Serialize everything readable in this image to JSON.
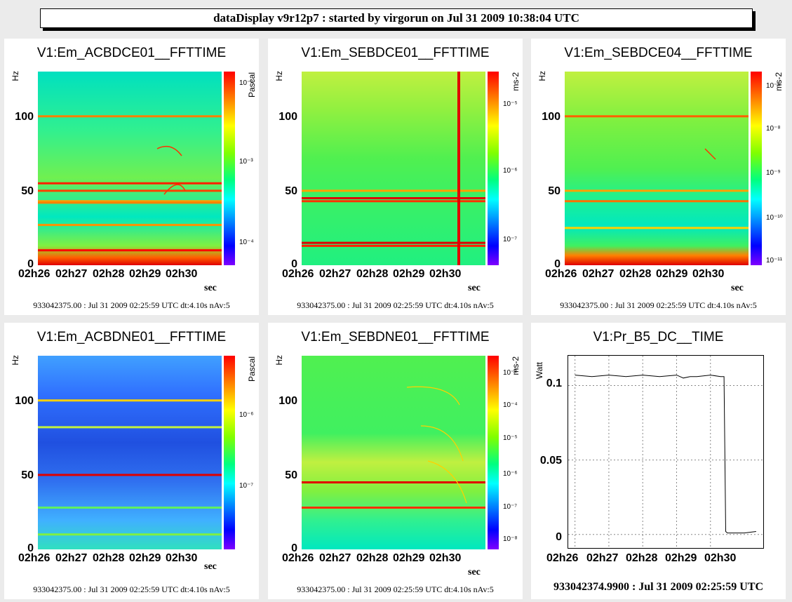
{
  "header": "dataDisplay v9r12p7 : started by virgorun on Jul 31 2009 10:38:04 UTC",
  "colors": {
    "panel_bg": "#ffffff",
    "page_bg": "#ebebeb",
    "line": "#000000"
  },
  "chart_data": [
    {
      "type": "heatmap",
      "title": "V1:Em_ACBDCE01__FFTTIME",
      "ylabel": "Hz",
      "xlabel": "sec",
      "units": "Pascal",
      "yticks": [
        "100",
        "50",
        "0"
      ],
      "xticks": [
        "02h26",
        "02h27",
        "02h28",
        "02h29",
        "02h30"
      ],
      "colorbar_ticks": [
        "10⁻²",
        "10⁻³",
        "10⁻⁴"
      ],
      "ylim": [
        0,
        130
      ],
      "lines_hz": [
        100,
        55,
        50,
        43,
        42,
        27,
        10
      ],
      "footer": "933042375.00 : Jul 31 2009 02:25:59 UTC dt:4.10s nAv:5"
    },
    {
      "type": "heatmap",
      "title": "V1:Em_SEBDCE01__FFTTIME",
      "ylabel": "Hz",
      "xlabel": "sec",
      "units": "ms-2",
      "yticks": [
        "100",
        "50",
        "0"
      ],
      "xticks": [
        "02h26",
        "02h27",
        "02h28",
        "02h29",
        "02h30"
      ],
      "colorbar_ticks": [
        "10⁻⁵",
        "10⁻⁶",
        "10⁻⁷"
      ],
      "ylim": [
        0,
        130
      ],
      "lines_hz": [
        50,
        45,
        43,
        15,
        13
      ],
      "footer": "933042375.00 : Jul 31 2009 02:25:59 UTC dt:4.10s nAv:5"
    },
    {
      "type": "heatmap",
      "title": "V1:Em_SEBDCE04__FFTTIME",
      "ylabel": "Hz",
      "xlabel": "sec",
      "units": "ms-2",
      "yticks": [
        "100",
        "50",
        "0"
      ],
      "xticks": [
        "02h26",
        "02h27",
        "02h28",
        "02h29",
        "02h30"
      ],
      "colorbar_ticks": [
        "10⁻⁸",
        "10⁻⁸",
        "10⁻⁹",
        "10⁻¹⁰",
        "10⁻¹¹"
      ],
      "ylim": [
        0,
        130
      ],
      "lines_hz": [
        100,
        50,
        43,
        25
      ],
      "footer": "933042375.00 : Jul 31 2009 02:25:59 UTC dt:4.10s nAv:5"
    },
    {
      "type": "heatmap",
      "title": "V1:Em_ACBDNE01__FFTTIME",
      "ylabel": "Hz",
      "xlabel": "sec",
      "units": "Pascal",
      "yticks": [
        "100",
        "50",
        "0"
      ],
      "xticks": [
        "02h26",
        "02h27",
        "02h28",
        "02h29",
        "02h30"
      ],
      "colorbar_ticks": [
        "10⁻⁶",
        "10⁻⁷"
      ],
      "ylim": [
        0,
        130
      ],
      "lines_hz": [
        100,
        82,
        50,
        28,
        10
      ],
      "footer": "933042375.00 : Jul 31 2009 02:25:59 UTC dt:4.10s nAv:5"
    },
    {
      "type": "heatmap",
      "title": "V1:Em_SEBDNE01__FFTTIME",
      "ylabel": "Hz",
      "xlabel": "sec",
      "units": "ms-2",
      "yticks": [
        "100",
        "50",
        "0"
      ],
      "xticks": [
        "02h26",
        "02h27",
        "02h28",
        "02h29",
        "02h30"
      ],
      "colorbar_ticks": [
        "10⁻³",
        "10⁻⁴",
        "10⁻⁵",
        "10⁻⁶",
        "10⁻⁷",
        "10⁻⁸"
      ],
      "ylim": [
        0,
        130
      ],
      "lines_hz": [
        45,
        28
      ],
      "footer": "933042375.00 : Jul 31 2009 02:25:59 UTC dt:4.10s nAv:5"
    },
    {
      "type": "line",
      "title": "V1:Pr_B5_DC__TIME",
      "ylabel": "Watt",
      "xlabel": "",
      "yticks": [
        "0.1",
        "0.05",
        "0"
      ],
      "xticks": [
        "02h26",
        "02h27",
        "02h28",
        "02h29",
        "02h30"
      ],
      "ylim": [
        -0.01,
        0.12
      ],
      "grid": true,
      "series": [
        {
          "x": [
            0,
            0.5,
            1,
            1.5,
            2,
            2.5,
            3,
            3.2,
            3.4,
            3.6,
            4,
            4.3,
            4.4,
            4.45,
            4.5,
            5,
            5.35
          ],
          "values": [
            0.107,
            0.106,
            0.107,
            0.106,
            0.107,
            0.106,
            0.107,
            0.105,
            0.106,
            0.106,
            0.107,
            0.106,
            0.106,
            0.002,
            0.001,
            0.001,
            0.002
          ]
        }
      ],
      "footer": "933042374.9900 : Jul 31 2009 02:25:59 UTC"
    }
  ]
}
